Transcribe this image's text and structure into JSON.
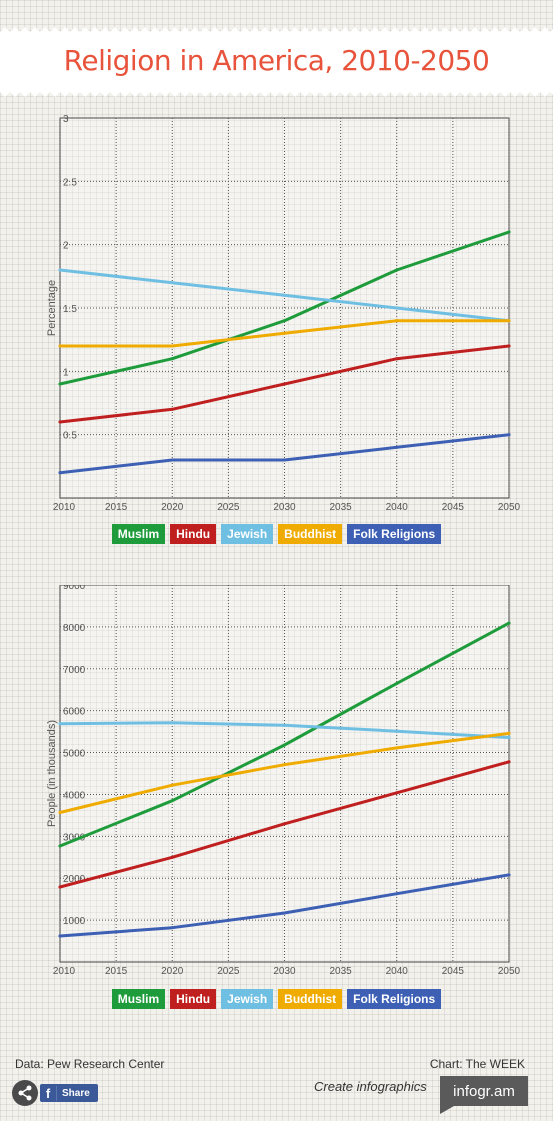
{
  "header": {
    "title": "Religion in America, 2010-2050"
  },
  "legend": [
    {
      "label": "Muslim",
      "color": "#1e9c3b"
    },
    {
      "label": "Hindu",
      "color": "#c01f1f"
    },
    {
      "label": "Jewish",
      "color": "#6fbfe3"
    },
    {
      "label": "Buddhist",
      "color": "#f0ab00"
    },
    {
      "label": "Folk Religions",
      "color": "#3d5fb4"
    }
  ],
  "chart_data": [
    {
      "type": "line",
      "ylabel": "Percentage",
      "xlim": [
        2010,
        2050
      ],
      "ylim": [
        0,
        3
      ],
      "xticks": [
        "2010",
        "2015",
        "2020",
        "2025",
        "2030",
        "2035",
        "2040",
        "2045",
        "2050"
      ],
      "yticks": [
        "0.5",
        "1",
        "1.5",
        "2",
        "2.5",
        "3"
      ],
      "x": [
        2010,
        2020,
        2030,
        2040,
        2050
      ],
      "series": [
        {
          "name": "Muslim",
          "values": [
            0.9,
            1.1,
            1.4,
            1.8,
            2.1
          ]
        },
        {
          "name": "Hindu",
          "values": [
            0.6,
            0.7,
            0.9,
            1.1,
            1.2
          ]
        },
        {
          "name": "Jewish",
          "values": [
            1.8,
            1.7,
            1.6,
            1.5,
            1.4
          ]
        },
        {
          "name": "Buddhist",
          "values": [
            1.2,
            1.2,
            1.3,
            1.4,
            1.4
          ]
        },
        {
          "name": "Folk Religions",
          "values": [
            0.2,
            0.3,
            0.3,
            0.4,
            0.5
          ]
        }
      ]
    },
    {
      "type": "line",
      "ylabel": "People (in thousands)",
      "xlim": [
        2010,
        2050
      ],
      "ylim": [
        0,
        9000
      ],
      "xticks": [
        "2010",
        "2015",
        "2020",
        "2025",
        "2030",
        "2035",
        "2040",
        "2045",
        "2050"
      ],
      "yticks": [
        "1000",
        "2000",
        "3000",
        "4000",
        "5000",
        "6000",
        "7000",
        "8000",
        "9000"
      ],
      "x": [
        2010,
        2020,
        2030,
        2040,
        2050
      ],
      "series": [
        {
          "name": "Muslim",
          "values": [
            2770,
            3850,
            5180,
            6650,
            8090
          ]
        },
        {
          "name": "Hindu",
          "values": [
            1790,
            2500,
            3300,
            4040,
            4780
          ]
        },
        {
          "name": "Jewish",
          "values": [
            5690,
            5710,
            5650,
            5510,
            5360
          ]
        },
        {
          "name": "Buddhist",
          "values": [
            3570,
            4220,
            4710,
            5110,
            5460
          ]
        },
        {
          "name": "Folk Religions",
          "values": [
            620,
            820,
            1170,
            1630,
            2080
          ]
        }
      ]
    }
  ],
  "footer": {
    "source": "Data: Pew Research Center",
    "credit": "Chart: The WEEK",
    "create": "Create infographics",
    "brand": "infogr.am",
    "share": "Share",
    "fb": "f"
  }
}
